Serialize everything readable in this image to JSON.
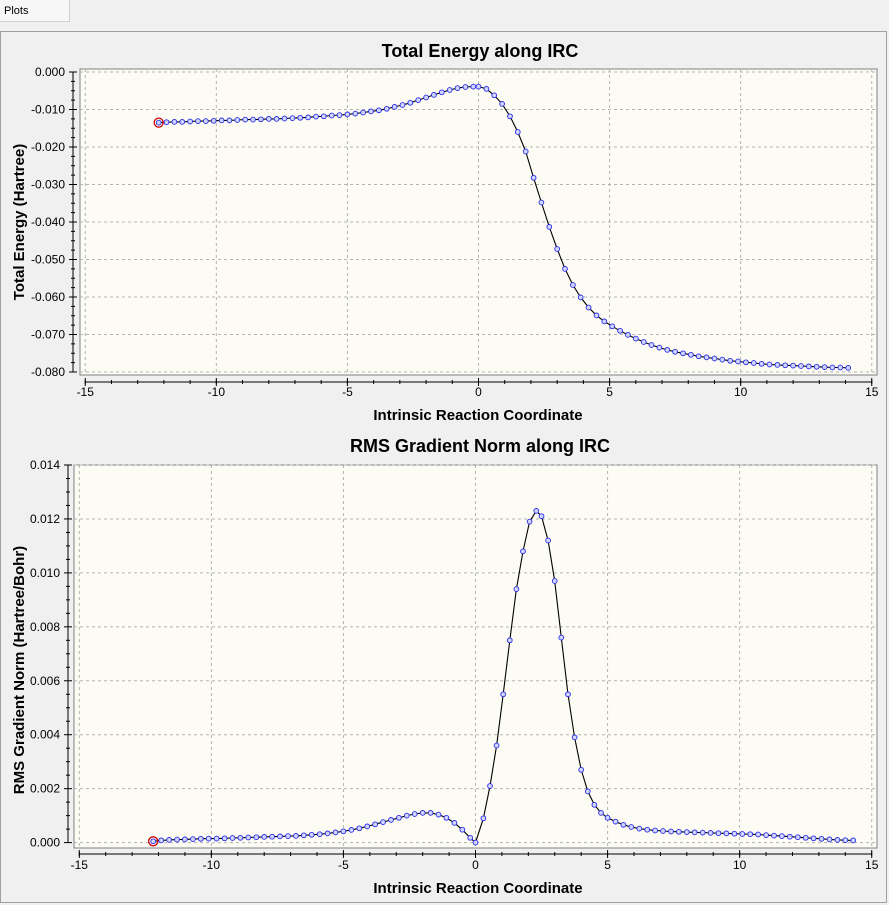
{
  "window": {
    "tab_label": "Plots"
  },
  "chart_data": [
    {
      "type": "line",
      "title": "Total Energy along IRC",
      "xlabel": "Intrinsic Reaction Coordinate",
      "ylabel": "Total Energy (Hartree)",
      "xlim": [
        -15.2,
        15.2
      ],
      "ylim": [
        -0.0808,
        0.0008
      ],
      "xticks": [
        -15,
        -10,
        -5,
        0,
        5,
        10,
        15
      ],
      "xtick_labels": [
        "-15",
        "-10",
        "-5",
        "0",
        "5",
        "10",
        "15"
      ],
      "yticks": [
        0,
        -0.01,
        -0.02,
        -0.03,
        -0.04,
        -0.05,
        -0.06,
        -0.07,
        -0.08
      ],
      "ytick_labels": [
        "0.000",
        "-0.010",
        "-0.020",
        "-0.030",
        "-0.040",
        "-0.050",
        "-0.060",
        "-0.070",
        "-0.080"
      ],
      "grid": true,
      "colors": {
        "line": "#000000",
        "marker": "#2a2ae6",
        "highlight": "#cc0000",
        "plot_bg": "#fcfcf4"
      },
      "highlight_point": {
        "x": -12.2,
        "y": -0.0135
      },
      "x": [
        -12.2,
        -11.9,
        -11.6,
        -11.3,
        -11.0,
        -10.7,
        -10.4,
        -10.1,
        -9.8,
        -9.5,
        -9.2,
        -8.9,
        -8.6,
        -8.3,
        -8.0,
        -7.7,
        -7.4,
        -7.1,
        -6.8,
        -6.5,
        -6.2,
        -5.9,
        -5.6,
        -5.3,
        -5.0,
        -4.7,
        -4.4,
        -4.1,
        -3.8,
        -3.5,
        -3.2,
        -2.9,
        -2.6,
        -2.3,
        -2.0,
        -1.7,
        -1.4,
        -1.1,
        -0.8,
        -0.5,
        -0.2,
        0.0,
        0.3,
        0.6,
        0.9,
        1.2,
        1.5,
        1.8,
        2.1,
        2.4,
        2.7,
        3.0,
        3.3,
        3.6,
        3.9,
        4.2,
        4.5,
        4.8,
        5.1,
        5.4,
        5.7,
        6.0,
        6.3,
        6.6,
        6.9,
        7.2,
        7.5,
        7.8,
        8.1,
        8.4,
        8.7,
        9.0,
        9.3,
        9.6,
        9.9,
        10.2,
        10.5,
        10.8,
        11.1,
        11.4,
        11.7,
        12.0,
        12.3,
        12.6,
        12.9,
        13.2,
        13.5,
        13.8,
        14.1
      ],
      "y": [
        -0.0135,
        -0.0134,
        -0.0133,
        -0.0133,
        -0.0132,
        -0.0131,
        -0.0131,
        -0.013,
        -0.0129,
        -0.0129,
        -0.0128,
        -0.0127,
        -0.0127,
        -0.0126,
        -0.0125,
        -0.0125,
        -0.0124,
        -0.0123,
        -0.0122,
        -0.0121,
        -0.0119,
        -0.0118,
        -0.0116,
        -0.0115,
        -0.0113,
        -0.0111,
        -0.0108,
        -0.0105,
        -0.0102,
        -0.0098,
        -0.0093,
        -0.0088,
        -0.0082,
        -0.0075,
        -0.0068,
        -0.0061,
        -0.0054,
        -0.0048,
        -0.0043,
        -0.004,
        -0.0039,
        -0.0039,
        -0.0045,
        -0.0062,
        -0.0085,
        -0.0118,
        -0.016,
        -0.0212,
        -0.0282,
        -0.0348,
        -0.0413,
        -0.0472,
        -0.0525,
        -0.0568,
        -0.0601,
        -0.0628,
        -0.0649,
        -0.0665,
        -0.0678,
        -0.069,
        -0.0701,
        -0.0711,
        -0.072,
        -0.0728,
        -0.0735,
        -0.0741,
        -0.0746,
        -0.075,
        -0.0754,
        -0.0758,
        -0.0761,
        -0.0764,
        -0.0767,
        -0.077,
        -0.0772,
        -0.0774,
        -0.0776,
        -0.0778,
        -0.078,
        -0.0781,
        -0.0782,
        -0.0783,
        -0.0784,
        -0.0785,
        -0.0786,
        -0.0787,
        -0.0788,
        -0.0788,
        -0.0789
      ]
    },
    {
      "type": "line",
      "title": "RMS Gradient Norm along IRC",
      "xlabel": "Intrinsic Reaction Coordinate",
      "ylabel": "RMS Gradient Norm (Hartree/Bohr)",
      "xlim": [
        -15.2,
        15.2
      ],
      "ylim": [
        -0.0002,
        0.014
      ],
      "xticks": [
        -15,
        -10,
        -5,
        0,
        5,
        10,
        15
      ],
      "xtick_labels": [
        "-15",
        "-10",
        "-5",
        "0",
        "5",
        "10",
        "15"
      ],
      "yticks": [
        0,
        0.002,
        0.004,
        0.006,
        0.008,
        0.01,
        0.012,
        0.014
      ],
      "ytick_labels": [
        "0.000",
        "0.002",
        "0.004",
        "0.006",
        "0.008",
        "0.010",
        "0.012",
        "0.014"
      ],
      "grid": true,
      "colors": {
        "line": "#000000",
        "marker": "#2a2ae6",
        "highlight": "#cc0000",
        "plot_bg": "#fcfcf4"
      },
      "highlight_point": {
        "x": -12.2,
        "y": 5e-05
      },
      "x": [
        -12.2,
        -11.9,
        -11.6,
        -11.3,
        -11.0,
        -10.7,
        -10.4,
        -10.1,
        -9.8,
        -9.5,
        -9.2,
        -8.9,
        -8.6,
        -8.3,
        -8.0,
        -7.7,
        -7.4,
        -7.1,
        -6.8,
        -6.5,
        -6.2,
        -5.9,
        -5.6,
        -5.3,
        -5.0,
        -4.7,
        -4.4,
        -4.1,
        -3.8,
        -3.5,
        -3.2,
        -2.9,
        -2.6,
        -2.3,
        -2.0,
        -1.7,
        -1.4,
        -1.1,
        -0.8,
        -0.5,
        -0.2,
        0.0,
        0.3,
        0.55,
        0.8,
        1.05,
        1.3,
        1.55,
        1.8,
        2.05,
        2.3,
        2.5,
        2.75,
        3.0,
        3.25,
        3.5,
        3.75,
        4.0,
        4.25,
        4.5,
        4.75,
        5.0,
        5.3,
        5.6,
        5.9,
        6.2,
        6.5,
        6.8,
        7.1,
        7.4,
        7.7,
        8.0,
        8.3,
        8.6,
        8.9,
        9.2,
        9.5,
        9.8,
        10.1,
        10.4,
        10.7,
        11.0,
        11.3,
        11.6,
        11.9,
        12.2,
        12.5,
        12.8,
        13.1,
        13.4,
        13.7,
        14.0,
        14.3
      ],
      "y": [
        5e-05,
        8e-05,
        0.0001,
        0.00011,
        0.00012,
        0.00013,
        0.00014,
        0.00015,
        0.00015,
        0.00016,
        0.00017,
        0.00018,
        0.00019,
        0.0002,
        0.00021,
        0.00022,
        0.00023,
        0.00024,
        0.00025,
        0.00027,
        0.00029,
        0.00031,
        0.00034,
        0.00038,
        0.00042,
        0.00047,
        0.00053,
        0.0006,
        0.00068,
        0.00076,
        0.00084,
        0.00092,
        0.001,
        0.00106,
        0.0011,
        0.0011,
        0.00104,
        0.00092,
        0.00073,
        0.00048,
        0.00018,
        0.0,
        0.0009,
        0.0021,
        0.0036,
        0.0055,
        0.0075,
        0.0094,
        0.0108,
        0.0119,
        0.0123,
        0.0121,
        0.0112,
        0.0097,
        0.0076,
        0.0055,
        0.0039,
        0.0027,
        0.0019,
        0.0014,
        0.0011,
        0.00092,
        0.00078,
        0.00066,
        0.00058,
        0.00052,
        0.00048,
        0.00045,
        0.00043,
        0.00041,
        0.0004,
        0.00039,
        0.00038,
        0.00037,
        0.00036,
        0.00035,
        0.00034,
        0.00033,
        0.00032,
        0.00031,
        0.0003,
        0.00028,
        0.00026,
        0.00024,
        0.00022,
        0.0002,
        0.00018,
        0.00016,
        0.00014,
        0.00012,
        0.0001,
        9e-05,
        8e-05
      ]
    }
  ]
}
